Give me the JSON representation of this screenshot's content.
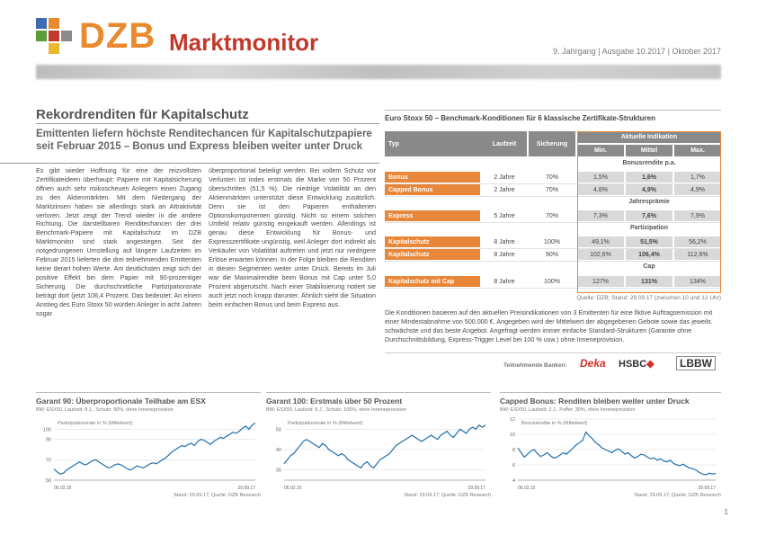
{
  "header": {
    "brand": "DZB",
    "brand_sub": "Marktmonitor",
    "issue": "9. Jahrgang | Ausgabe 10.2017 | Oktober 2017"
  },
  "article": {
    "title": "Rekordrenditen für Kapitalschutz",
    "subtitle": "Emittenten liefern höchste Renditechancen für Kapitalschutzpapiere seit Februar 2015 – Bonus und Express bleiben weiter unter Druck",
    "col1": "Es gibt wieder Hoffnung für eine der reizvollsten Zertifikateideen überhaupt: Papiere mit Kapitalsicherung öffnen auch sehr risikoscheuen Anlegern einen Zugang zu den Aktienmärkten. Mit dem Niedergang der Marktzinsen haben sie allerdings stark an Attraktivität verloren. Jetzt zeigt der Trend wieder in die andere Richtung. Die darstellbaren Renditechancen der drei Benchmark-Papiere mit Kapitalschutz im DZB Marktmonitor sind stark angestiegen. Seit der notgedrungenen Umstellung auf längere Laufzeiten im Februar 2015 lieferten die drei teilnehmenden Emittenten keine derart hohen Werte. Am deutlichsten zeigt sich der positive Effekt bei dem Papier mit 90-prozentiger Sicherung. Die durchschnittliche Partizipationsrate beträgt dort (jetzt 106,4 Prozent. Das bedeutet: An einem Anstieg des Euro Stoxx 50 würden Anleger in acht Jahren sogar",
    "col2": "überproportional beteiligt werden. Bei vollem Schutz vor Verlusten ist indes erstmals die Marke von 50 Prozent überschritten (51,5 %). Die niedrige Volatilität an den Aktienmärkten unterstützt diese Entwicklung zusätzlich. Denn sie ist den Papieren enthaltenen Optionskomponenten günstig. Nicht so einem solchen Umfeld relativ günstig eingekauft werden. Allerdings ist genau diese Entwicklung für Bonus- und Expresszertifikate ungünstig, weil Anleger dort indirekt als Verkäufer von Volatilität auftreten und jetzt nur niedrigere Erlöse erwarten können. In der Folge bleiben die Renditen in diesen Segmenten weiter unter Druck. Bereits im Juli war die Maximalrendite beim Bonus mit Cap unter 5,0 Prozent abgerutscht. Nach einer Stabilisierung notiert sie auch jetzt noch knapp darunter. Ähnlich sieht die Situation beim einfachen Bonus und beim Express aus."
  },
  "table": {
    "title": "Euro Stoxx 50 – Benchmark-Konditionen für 6 klassische Zertifikate-Strukturen",
    "headers": {
      "typ": "Typ",
      "laufzeit": "Laufzeit",
      "sicherung": "Sicherung",
      "group": "Aktuelle Indikation",
      "min": "Min.",
      "mittel": "Mittel",
      "max": "Max."
    },
    "sections": {
      "bonus": "Bonusrendite p.a.",
      "jahres": "Jahresprämie",
      "part": "Partizipation",
      "cap": "Cap"
    },
    "rows": [
      {
        "typ": "Bonus",
        "laufzeit": "2 Jahre",
        "sicherung": "70%",
        "min": "1,5%",
        "mittel": "1,6%",
        "max": "1,7%"
      },
      {
        "typ": "Capped Bonus",
        "laufzeit": "2 Jahre",
        "sicherung": "70%",
        "min": "4,8%",
        "mittel": "4,9%",
        "max": "4,9%"
      },
      {
        "typ": "Express",
        "laufzeit": "5 Jahre",
        "sicherung": "70%",
        "min": "7,3%",
        "mittel": "7,6%",
        "max": "7,9%"
      },
      {
        "typ": "Kapitalschutz",
        "laufzeit": "8 Jahre",
        "sicherung": "100%",
        "min": "49,1%",
        "mittel": "51,5%",
        "max": "56,2%"
      },
      {
        "typ": "Kapitalschutz",
        "laufzeit": "8 Jahre",
        "sicherung": "90%",
        "min": "102,6%",
        "mittel": "106,4%",
        "max": "112,6%"
      },
      {
        "typ": "Kapitalschutz mit Cap",
        "laufzeit": "8 Jahre",
        "sicherung": "100%",
        "min": "127%",
        "mittel": "131%",
        "max": "134%"
      }
    ],
    "source": "Quelle: DZB; Stand: 29.09.17 (zwischen 10 und 12 Uhr)",
    "note": "Die Konditionen basieren auf den aktuellen Preisindikationen von 3 Emittenten für eine fiktive Auftragsemission mit einer Mindestabnahme von 500.000 €. Angegeben wird der Mittelwert der abgegebenen Gebote sowie das jeweils schwächste und das beste Angebot. Angefragt werden immer einfache Standard-Strukturen (Garantie ohne Durchschnittsbildung, Express-Trigger Level bei 100 % usw.) ohne Inneneprovision.",
    "banks_label": "Teilnehmende Banken:",
    "banks": [
      "Deka",
      "HSBC",
      "LBBW"
    ]
  },
  "charts_text": [
    {
      "title": "Garant 90: Überproportionale Teilhabe am ESX",
      "sub": "BW: ESX50, Laufzeit: 8 J., Schutz: 90%, ohne Inneneprovision",
      "label": "Partizipationsrate in % (Mittelwert)",
      "source": "Stand: 29.09.17; Quelle: DZB Research",
      "x_start": "06.02.15",
      "x_end": "29.09.17"
    },
    {
      "title": "Garant 100: Erstmals über 50 Prozent",
      "sub": "BW: ESX50, Laufzeit: 8 J., Schutz: 100%, ohne Inneneprovision",
      "label": "Partizipationsrate in % (Mittelwert)",
      "source": "Stand: 29.09.17; Quelle: DZB Research",
      "x_start": "06.02.15",
      "x_end": "29.09.17"
    },
    {
      "title": "Capped Bonus: Renditen bleiben weiter unter Druck",
      "sub": "BW: ESX50, Laufzeit: 2 J., Puffer: 30%, ohne Inneneprovision",
      "label": "Bonusrendite in % (Mittelwert)",
      "source": "Stand: 29.09.17; Quelle: DZB Research",
      "x_start": "06.02.15",
      "x_end": "29.09.17"
    }
  ],
  "chart_data": [
    {
      "type": "line",
      "title": "Garant 90: Überproportionale Teilhabe am ESX",
      "ylim": [
        50,
        110
      ],
      "yticks": [
        50,
        70,
        90,
        100
      ],
      "color": "#1f6fae",
      "values": [
        61,
        58,
        56,
        57,
        60,
        62,
        64,
        66,
        68,
        66,
        65,
        67,
        69,
        70,
        68,
        66,
        64,
        62,
        63,
        65,
        66,
        65,
        63,
        61,
        60,
        62,
        64,
        63,
        62,
        64,
        66,
        67,
        66,
        68,
        70,
        72,
        75,
        78,
        80,
        82,
        84,
        83,
        85,
        86,
        84,
        88,
        90,
        89,
        87,
        85,
        88,
        90,
        92,
        91,
        93,
        95,
        97,
        96,
        98,
        101,
        103,
        100,
        104,
        106
      ]
    },
    {
      "type": "line",
      "title": "Garant 100: Erstmals über 50 Prozent",
      "ylim": [
        25,
        55
      ],
      "yticks": [
        30,
        40,
        50
      ],
      "color": "#1f6fae",
      "values": [
        33,
        35,
        37,
        38,
        40,
        42,
        44,
        45,
        44,
        43,
        42,
        41,
        43,
        42,
        40,
        39,
        38,
        37,
        38,
        37,
        35,
        34,
        33,
        32,
        31,
        33,
        34,
        32,
        31,
        33,
        35,
        36,
        37,
        38,
        40,
        42,
        43,
        44,
        45,
        46,
        47,
        46,
        45,
        44,
        45,
        46,
        47,
        46,
        45,
        47,
        48,
        49,
        47,
        46,
        48,
        50,
        49,
        48,
        50,
        51,
        50,
        52,
        51,
        52
      ]
    },
    {
      "type": "line",
      "title": "Capped Bonus: Renditen bleiben weiter unter Druck",
      "ylim": [
        4,
        12
      ],
      "yticks": [
        4,
        6,
        8,
        10,
        12
      ],
      "color": "#1f6fae",
      "values": [
        8.2,
        7.6,
        7.0,
        7.4,
        7.8,
        8.0,
        7.5,
        7.1,
        7.3,
        7.6,
        7.2,
        6.9,
        7.0,
        7.3,
        7.6,
        7.4,
        7.8,
        8.2,
        8.6,
        8.9,
        9.2,
        10.3,
        9.8,
        9.4,
        8.9,
        8.6,
        8.2,
        8.0,
        7.8,
        7.6,
        7.9,
        8.1,
        7.8,
        7.4,
        7.6,
        7.2,
        6.9,
        7.1,
        7.4,
        7.3,
        7.0,
        6.8,
        6.9,
        6.6,
        6.8,
        6.5,
        6.4,
        6.6,
        6.2,
        6.0,
        5.9,
        6.1,
        5.8,
        5.6,
        5.5,
        5.3,
        5.0,
        4.8,
        4.7,
        4.9,
        4.8,
        4.9
      ]
    }
  ],
  "page_number": "1"
}
